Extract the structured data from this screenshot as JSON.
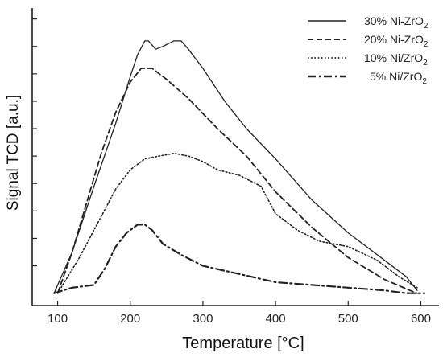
{
  "chart_data": {
    "type": "line",
    "xlabel": "Temperature [°C]",
    "ylabel": "Signal TCD [a.u.]",
    "xlim": [
      65,
      625
    ],
    "ylim": [
      -0.045,
      1.04
    ],
    "xticks": [
      100,
      200,
      300,
      400,
      500,
      600
    ],
    "xtick_labels": [
      "100",
      "200",
      "300",
      "400",
      "500",
      "600"
    ],
    "yticks_unlabeled": [
      0.1,
      0.2,
      0.3,
      0.4,
      0.5,
      0.6,
      0.7,
      0.8,
      0.9,
      1.0
    ],
    "y_tick_labels_shown": false,
    "grid": false,
    "legend_position": "top-right",
    "series": [
      {
        "name": "30% Ni-ZrO2",
        "label_main": "30% Ni-ZrO",
        "label_sub": "2",
        "dash": "solid",
        "x": [
          95,
          120,
          150,
          180,
          200,
          210,
          220,
          225,
          235,
          245,
          260,
          270,
          280,
          300,
          330,
          360,
          400,
          450,
          500,
          550,
          580,
          595
        ],
        "y": [
          0.0,
          0.15,
          0.39,
          0.62,
          0.79,
          0.87,
          0.92,
          0.92,
          0.89,
          0.9,
          0.92,
          0.92,
          0.89,
          0.82,
          0.7,
          0.6,
          0.49,
          0.34,
          0.22,
          0.12,
          0.06,
          0.01
        ]
      },
      {
        "name": "20% Ni-ZrO2",
        "label_main": "20% Ni-ZrO",
        "label_sub": "2",
        "dash": "dashed",
        "x": [
          100,
          120,
          140,
          160,
          180,
          200,
          215,
          230,
          250,
          280,
          320,
          360,
          400,
          450,
          500,
          550,
          585,
          595
        ],
        "y": [
          0.0,
          0.15,
          0.33,
          0.51,
          0.66,
          0.77,
          0.82,
          0.82,
          0.78,
          0.71,
          0.6,
          0.5,
          0.37,
          0.24,
          0.13,
          0.05,
          0.01,
          0.0
        ]
      },
      {
        "name": "10% Ni/ZrO2",
        "label_main": "10% Ni/ZrO",
        "label_sub": "2",
        "dash": "dotted",
        "x": [
          100,
          130,
          160,
          180,
          200,
          220,
          240,
          260,
          280,
          300,
          320,
          350,
          380,
          400,
          430,
          460,
          500,
          540,
          570,
          595
        ],
        "y": [
          0.0,
          0.13,
          0.28,
          0.38,
          0.45,
          0.49,
          0.5,
          0.51,
          0.5,
          0.48,
          0.45,
          0.43,
          0.39,
          0.29,
          0.23,
          0.19,
          0.17,
          0.12,
          0.06,
          0.02
        ]
      },
      {
        "name": "5% Ni/ZrO2",
        "label_main": "5% Ni/ZrO",
        "label_sub": "2",
        "dash": "dashdot",
        "x": [
          95,
          120,
          150,
          165,
          180,
          195,
          210,
          220,
          230,
          245,
          270,
          300,
          350,
          400,
          450,
          500,
          550,
          580,
          605
        ],
        "y": [
          0.0,
          0.02,
          0.03,
          0.09,
          0.17,
          0.22,
          0.25,
          0.25,
          0.23,
          0.18,
          0.14,
          0.1,
          0.07,
          0.04,
          0.03,
          0.02,
          0.01,
          0.0,
          0.0
        ]
      }
    ]
  }
}
